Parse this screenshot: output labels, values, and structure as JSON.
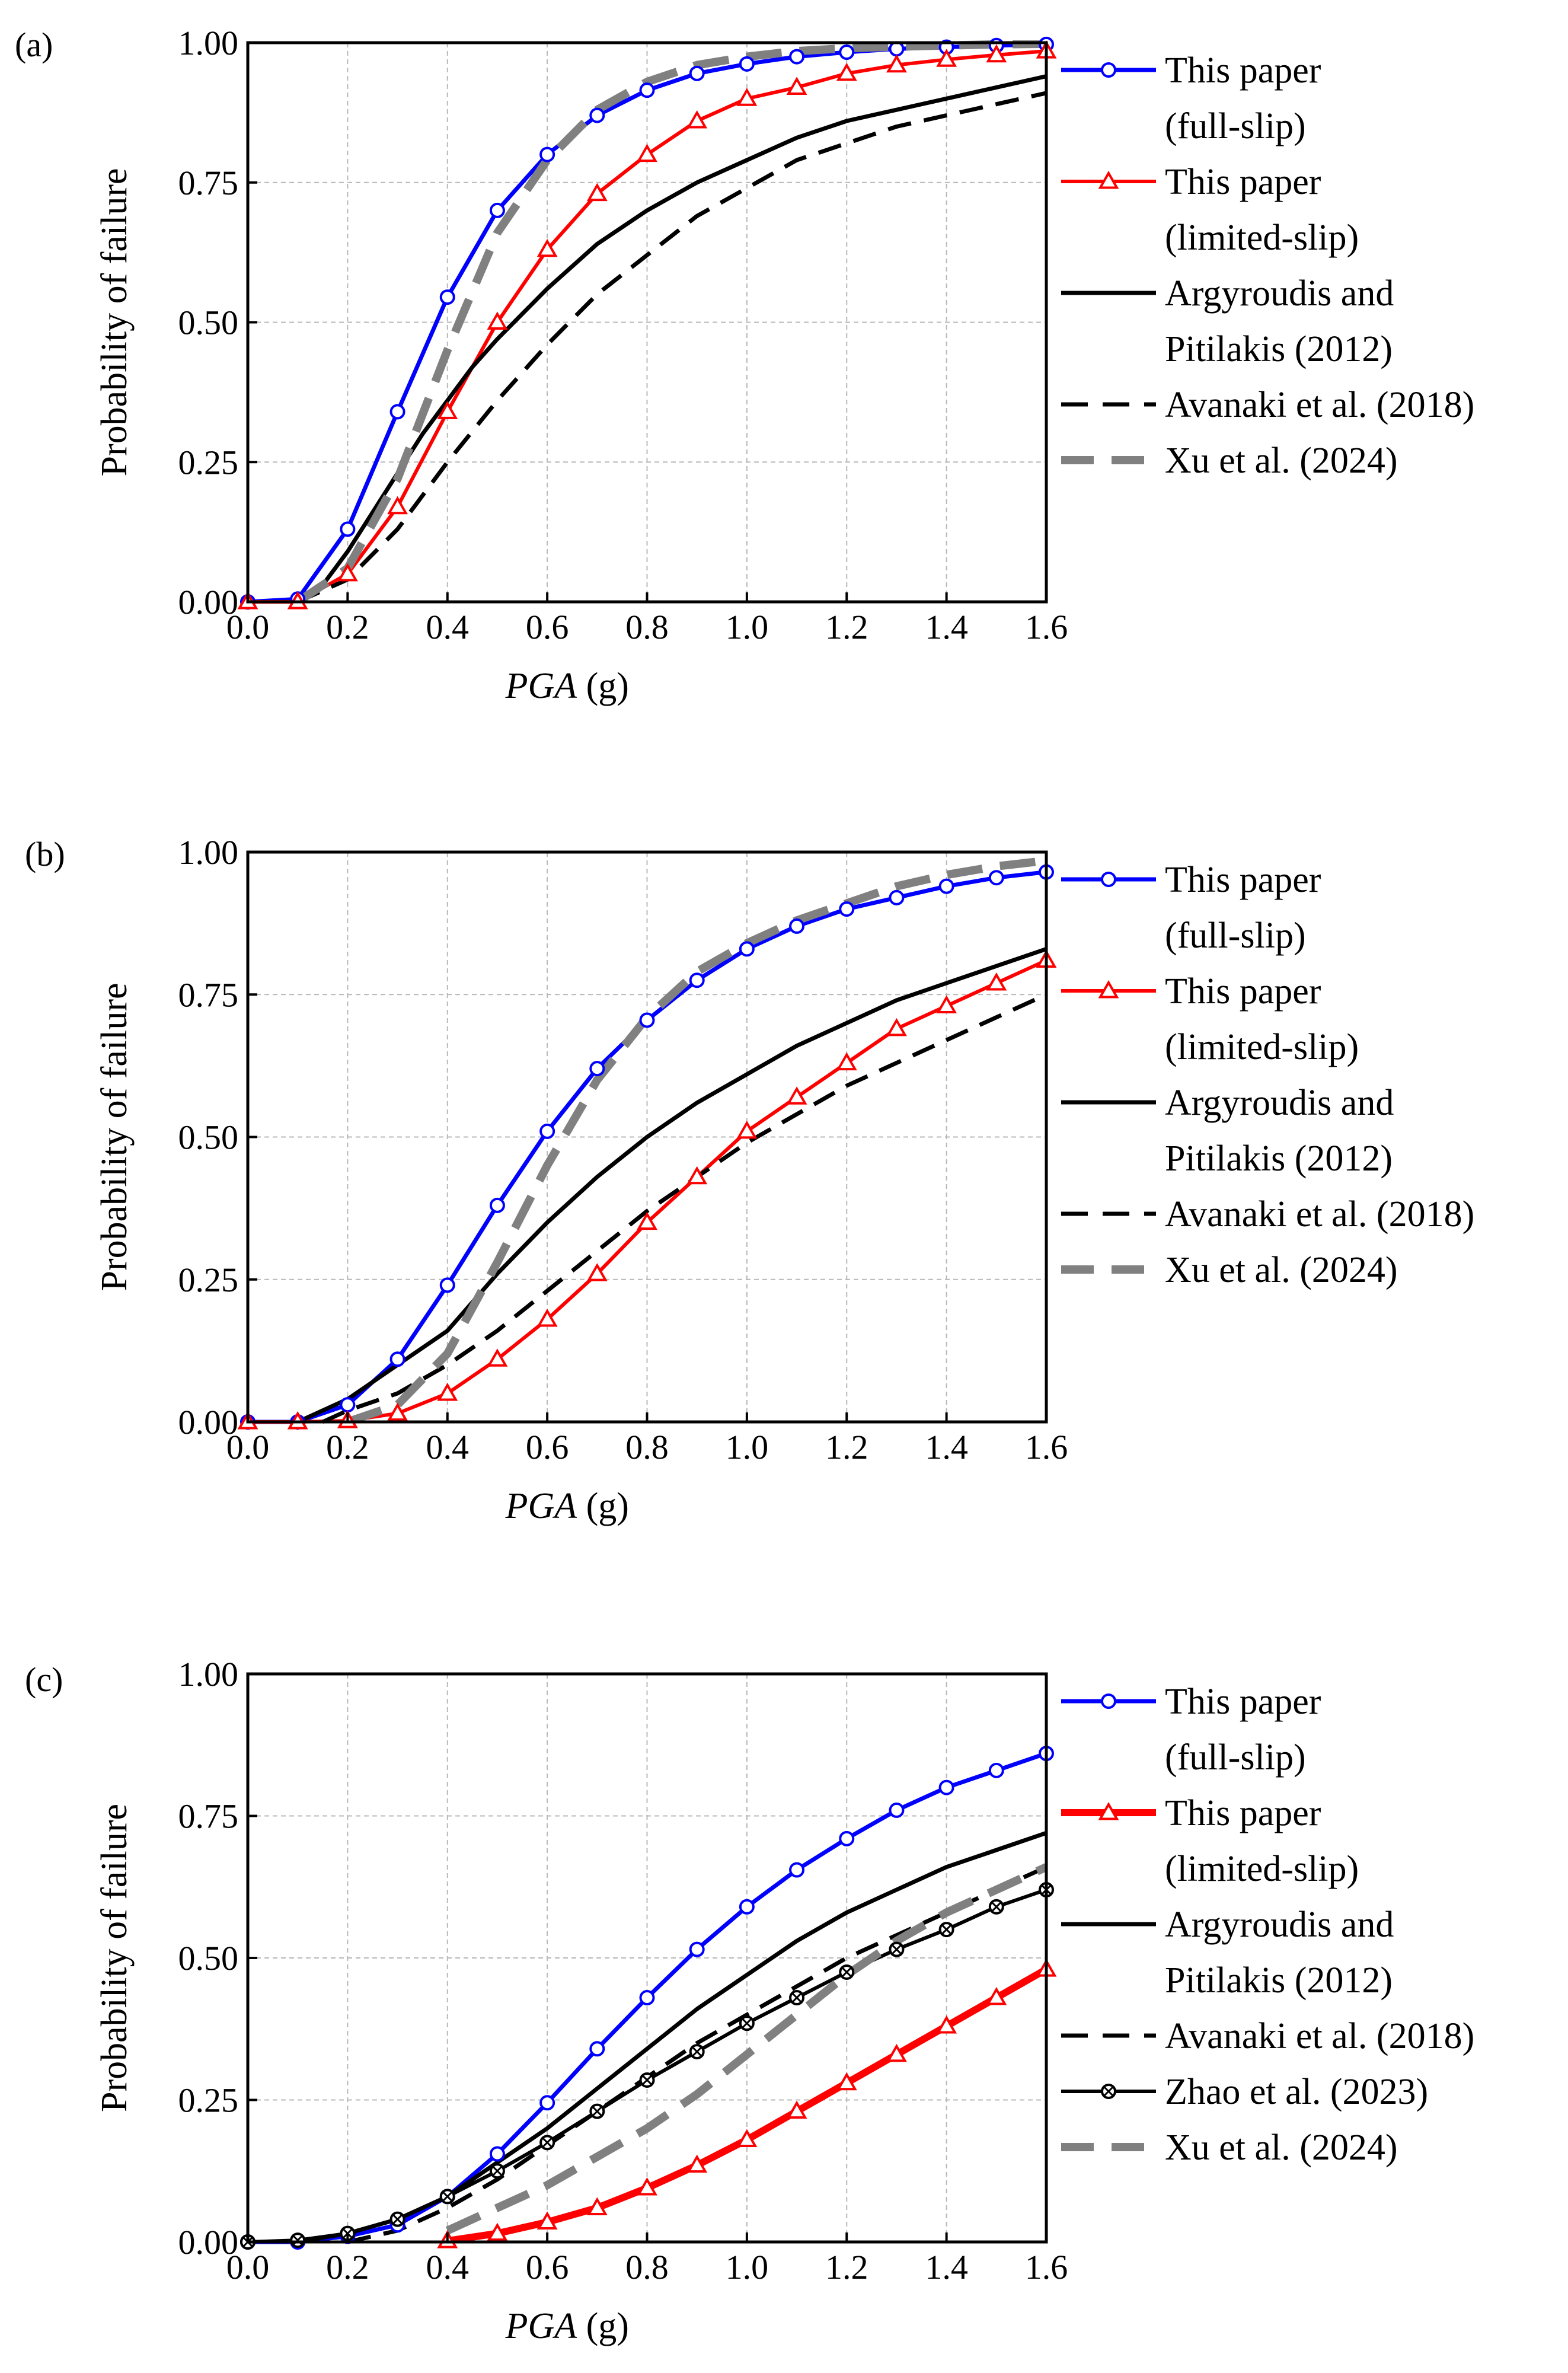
{
  "chart_data": [
    {
      "type": "line",
      "panel_label": "(a)",
      "xlabel": {
        "main": "PGA",
        "unit": "(g)"
      },
      "ylabel": "Probability of failure",
      "xlim": [
        0,
        1.6
      ],
      "ylim": [
        0,
        1
      ],
      "xticks": [
        "0.0",
        "0.2",
        "0.4",
        "0.6",
        "0.8",
        "1.0",
        "1.2",
        "1.4",
        "1.6"
      ],
      "yticks": [
        "0.00",
        "0.25",
        "0.50",
        "0.75",
        "1.00"
      ],
      "grid": true,
      "legend_position": "right",
      "series": [
        {
          "name": "This paper (full-slip)",
          "legend_lines": [
            "This paper",
            "(full-slip)"
          ],
          "style": "blue-circle",
          "x": [
            0,
            0.1,
            0.2,
            0.3,
            0.4,
            0.5,
            0.6,
            0.7,
            0.8,
            0.9,
            1.0,
            1.1,
            1.2,
            1.3,
            1.4,
            1.5,
            1.6
          ],
          "y": [
            0,
            0.005,
            0.13,
            0.34,
            0.545,
            0.7,
            0.8,
            0.87,
            0.915,
            0.945,
            0.962,
            0.975,
            0.983,
            0.989,
            0.992,
            0.995,
            0.997
          ]
        },
        {
          "name": "This paper (limited-slip)",
          "legend_lines": [
            "This paper",
            "(limited-slip)"
          ],
          "style": "red-triangle",
          "x": [
            0,
            0.1,
            0.2,
            0.3,
            0.4,
            0.5,
            0.6,
            0.7,
            0.8,
            0.9,
            1.0,
            1.1,
            1.2,
            1.3,
            1.4,
            1.5,
            1.6
          ],
          "y": [
            0,
            0,
            0.05,
            0.17,
            0.34,
            0.5,
            0.63,
            0.73,
            0.8,
            0.86,
            0.9,
            0.92,
            0.945,
            0.96,
            0.97,
            0.978,
            0.985
          ]
        },
        {
          "name": "Argyroudis and Pitilakis (2012)",
          "legend_lines": [
            "Argyroudis and",
            "Pitilakis (2012)"
          ],
          "style": "black-solid",
          "x": [
            0.1,
            0.15,
            0.2,
            0.25,
            0.3,
            0.35,
            0.4,
            0.45,
            0.5,
            0.6,
            0.7,
            0.8,
            0.9,
            1.0,
            1.1,
            1.2,
            1.25,
            1.3,
            1.4,
            1.5,
            1.6
          ],
          "y": [
            0,
            0.03,
            0.09,
            0.16,
            0.23,
            0.3,
            0.36,
            0.42,
            0.47,
            0.56,
            0.64,
            0.7,
            0.75,
            0.79,
            0.83,
            0.86,
            0.87,
            0.88,
            0.9,
            0.92,
            0.94
          ]
        },
        {
          "name": "Avanaki et al. (2018)",
          "legend_lines": [
            "Avanaki et al. (2018)"
          ],
          "style": "black-dashed",
          "x": [
            0.1,
            0.2,
            0.3,
            0.4,
            0.5,
            0.6,
            0.7,
            0.8,
            0.9,
            1.0,
            1.1,
            1.2,
            1.3,
            1.4,
            1.5,
            1.6
          ],
          "y": [
            0,
            0.04,
            0.13,
            0.25,
            0.36,
            0.46,
            0.55,
            0.62,
            0.69,
            0.74,
            0.79,
            0.82,
            0.85,
            0.87,
            0.89,
            0.91
          ]
        },
        {
          "name": "Xu et al. (2024)",
          "legend_lines": [
            "Xu et al. (2024)"
          ],
          "style": "gray-dashed",
          "x": [
            0.1,
            0.2,
            0.3,
            0.4,
            0.5,
            0.6,
            0.7,
            0.8,
            0.9,
            1.0,
            1.1,
            1.2,
            1.3,
            1.4,
            1.5,
            1.6
          ],
          "y": [
            0,
            0.06,
            0.22,
            0.45,
            0.66,
            0.79,
            0.88,
            0.93,
            0.96,
            0.975,
            0.985,
            0.99,
            0.993,
            0.995,
            0.997,
            0.998
          ]
        }
      ]
    },
    {
      "type": "line",
      "panel_label": "(b)",
      "xlabel": {
        "main": "PGA",
        "unit": "(g)"
      },
      "ylabel": "Probability of failure",
      "xlim": [
        0,
        1.6
      ],
      "ylim": [
        0,
        1
      ],
      "xticks": [
        "0.0",
        "0.2",
        "0.4",
        "0.6",
        "0.8",
        "1.0",
        "1.2",
        "1.4",
        "1.6"
      ],
      "yticks": [
        "0.00",
        "0.25",
        "0.50",
        "0.75",
        "1.00"
      ],
      "grid": true,
      "legend_position": "right",
      "series": [
        {
          "name": "This paper (full-slip)",
          "legend_lines": [
            "This paper",
            "(full-slip)"
          ],
          "style": "blue-circle",
          "x": [
            0,
            0.1,
            0.2,
            0.3,
            0.4,
            0.5,
            0.6,
            0.7,
            0.8,
            0.9,
            1.0,
            1.1,
            1.2,
            1.3,
            1.4,
            1.5,
            1.6
          ],
          "y": [
            0,
            0,
            0.03,
            0.11,
            0.24,
            0.38,
            0.51,
            0.62,
            0.705,
            0.775,
            0.83,
            0.87,
            0.9,
            0.92,
            0.94,
            0.955,
            0.965
          ]
        },
        {
          "name": "This paper (limited-slip)",
          "legend_lines": [
            "This paper",
            "(limited-slip)"
          ],
          "style": "red-triangle",
          "x": [
            0,
            0.1,
            0.2,
            0.3,
            0.4,
            0.5,
            0.6,
            0.7,
            0.8,
            0.9,
            1.0,
            1.1,
            1.2,
            1.3,
            1.4,
            1.5,
            1.6
          ],
          "y": [
            0,
            0,
            0.002,
            0.015,
            0.05,
            0.11,
            0.18,
            0.26,
            0.35,
            0.43,
            0.51,
            0.57,
            0.63,
            0.69,
            0.73,
            0.77,
            0.81
          ]
        },
        {
          "name": "Argyroudis and Pitilakis (2012)",
          "legend_lines": [
            "Argyroudis and",
            "Pitilakis (2012)"
          ],
          "style": "black-solid",
          "x": [
            0.1,
            0.2,
            0.3,
            0.4,
            0.5,
            0.6,
            0.7,
            0.8,
            0.9,
            1.0,
            1.1,
            1.2,
            1.3,
            1.4,
            1.5,
            1.6
          ],
          "y": [
            0,
            0.04,
            0.1,
            0.16,
            0.26,
            0.35,
            0.43,
            0.5,
            0.56,
            0.61,
            0.66,
            0.7,
            0.74,
            0.77,
            0.8,
            0.83
          ]
        },
        {
          "name": "Avanaki et al. (2018)",
          "legend_lines": [
            "Avanaki et al. (2018)"
          ],
          "style": "black-dashed",
          "x": [
            0.15,
            0.2,
            0.3,
            0.4,
            0.5,
            0.6,
            0.7,
            0.8,
            0.9,
            1.0,
            1.1,
            1.2,
            1.3,
            1.4,
            1.5,
            1.6
          ],
          "y": [
            0,
            0.02,
            0.05,
            0.1,
            0.16,
            0.23,
            0.3,
            0.37,
            0.43,
            0.49,
            0.54,
            0.59,
            0.63,
            0.67,
            0.71,
            0.75
          ]
        },
        {
          "name": "Xu et al. (2024)",
          "legend_lines": [
            "Xu et al. (2024)"
          ],
          "style": "gray-dashed",
          "x": [
            0.2,
            0.3,
            0.4,
            0.5,
            0.6,
            0.7,
            0.8,
            0.9,
            1.0,
            1.1,
            1.2,
            1.3,
            1.4,
            1.5,
            1.6
          ],
          "y": [
            0,
            0.03,
            0.12,
            0.28,
            0.45,
            0.6,
            0.71,
            0.79,
            0.84,
            0.88,
            0.91,
            0.94,
            0.96,
            0.975,
            0.985
          ]
        }
      ]
    },
    {
      "type": "line",
      "panel_label": "(c)",
      "xlabel": {
        "main": "PGA",
        "unit": "(g)"
      },
      "ylabel": "Probability of failure",
      "xlim": [
        0,
        1.6
      ],
      "ylim": [
        0,
        1
      ],
      "xticks": [
        "0.0",
        "0.2",
        "0.4",
        "0.6",
        "0.8",
        "1.0",
        "1.2",
        "1.4",
        "1.6"
      ],
      "yticks": [
        "0.00",
        "0.25",
        "0.50",
        "0.75",
        "1.00"
      ],
      "grid": true,
      "legend_position": "right",
      "series": [
        {
          "name": "This paper (full-slip)",
          "legend_lines": [
            "This paper",
            "(full-slip)"
          ],
          "style": "blue-circle",
          "x": [
            0,
            0.1,
            0.2,
            0.3,
            0.4,
            0.5,
            0.6,
            0.7,
            0.8,
            0.9,
            1.0,
            1.1,
            1.2,
            1.3,
            1.4,
            1.5,
            1.6
          ],
          "y": [
            0,
            0,
            0.01,
            0.03,
            0.08,
            0.155,
            0.245,
            0.34,
            0.43,
            0.515,
            0.59,
            0.655,
            0.71,
            0.76,
            0.8,
            0.83,
            0.86
          ]
        },
        {
          "name": "This paper (limited-slip)",
          "legend_lines": [
            "This paper",
            "(limited-slip)"
          ],
          "style": "red-triangle-thick",
          "x": [
            0.4,
            0.5,
            0.6,
            0.7,
            0.8,
            0.9,
            1.0,
            1.1,
            1.2,
            1.3,
            1.4,
            1.5,
            1.6
          ],
          "y": [
            0.002,
            0.015,
            0.035,
            0.06,
            0.095,
            0.135,
            0.18,
            0.23,
            0.28,
            0.33,
            0.38,
            0.43,
            0.48
          ]
        },
        {
          "name": "Argyroudis and Pitilakis (2012)",
          "legend_lines": [
            "Argyroudis and",
            "Pitilakis (2012)"
          ],
          "style": "black-solid",
          "x": [
            0.1,
            0.2,
            0.3,
            0.4,
            0.5,
            0.6,
            0.7,
            0.8,
            0.9,
            1.0,
            1.1,
            1.2,
            1.3,
            1.4,
            1.5,
            1.6
          ],
          "y": [
            0,
            0.015,
            0.04,
            0.08,
            0.14,
            0.2,
            0.27,
            0.34,
            0.41,
            0.47,
            0.53,
            0.58,
            0.62,
            0.66,
            0.69,
            0.72
          ]
        },
        {
          "name": "Avanaki et al. (2018)",
          "legend_lines": [
            "Avanaki et al. (2018)"
          ],
          "style": "black-dashed",
          "x": [
            0.2,
            0.3,
            0.4,
            0.5,
            0.6,
            0.7,
            0.8,
            0.9,
            1.0,
            1.1,
            1.2,
            1.3,
            1.4,
            1.5,
            1.6
          ],
          "y": [
            0,
            0.02,
            0.06,
            0.11,
            0.17,
            0.23,
            0.29,
            0.35,
            0.4,
            0.45,
            0.5,
            0.54,
            0.58,
            0.62,
            0.66
          ]
        },
        {
          "name": "Zhao et al. (2023)",
          "legend_lines": [
            "Zhao et al. (2023)"
          ],
          "style": "black-crossed-circle",
          "x": [
            0,
            0.1,
            0.2,
            0.3,
            0.4,
            0.5,
            0.6,
            0.7,
            0.8,
            0.9,
            1.0,
            1.1,
            1.2,
            1.3,
            1.4,
            1.5,
            1.6
          ],
          "y": [
            0,
            0.003,
            0.015,
            0.04,
            0.08,
            0.125,
            0.175,
            0.23,
            0.285,
            0.335,
            0.385,
            0.43,
            0.475,
            0.515,
            0.55,
            0.59,
            0.62
          ]
        },
        {
          "name": "Xu et al. (2024)",
          "legend_lines": [
            "Xu et al. (2024)"
          ],
          "style": "gray-dashed",
          "x": [
            0.4,
            0.5,
            0.6,
            0.7,
            0.8,
            0.9,
            1.0,
            1.1,
            1.2,
            1.3,
            1.4,
            1.5,
            1.6
          ],
          "y": [
            0.02,
            0.06,
            0.1,
            0.15,
            0.2,
            0.26,
            0.33,
            0.4,
            0.47,
            0.53,
            0.58,
            0.62,
            0.66
          ]
        }
      ]
    }
  ]
}
